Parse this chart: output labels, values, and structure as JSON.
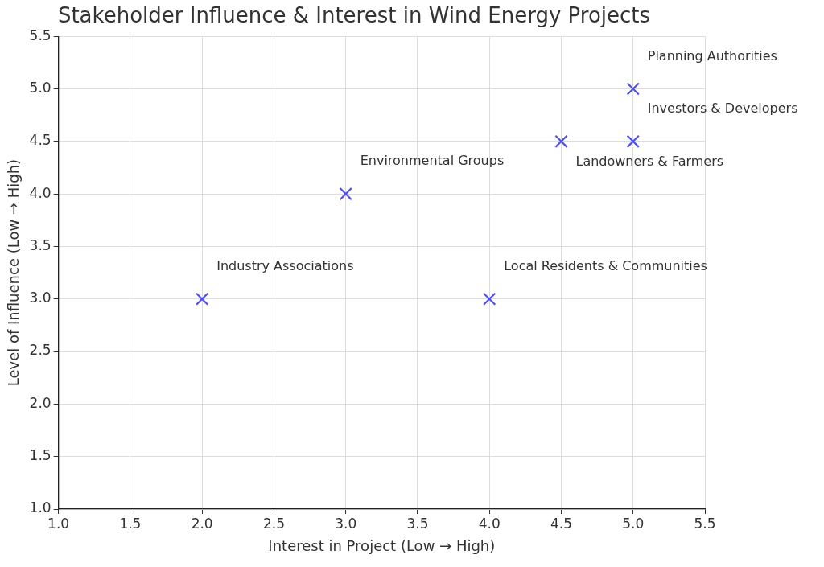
{
  "chart_data": {
    "type": "scatter",
    "title": "Stakeholder Influence & Interest in Wind Energy Projects",
    "xlabel": "Interest in Project (Low → High)",
    "ylabel": "Level of Influence (Low → High)",
    "x": [
      5,
      5,
      4.5,
      3,
      4,
      2
    ],
    "values": [
      5,
      4.5,
      4.5,
      4,
      3,
      3
    ],
    "color": "#5050f0",
    "marker": "cross",
    "grid": true,
    "xlim": [
      1,
      5.5
    ],
    "xticks": [
      {
        "value": 1,
        "label": "1.0"
      },
      1.5,
      {
        "value": 2,
        "label": "2.0"
      },
      2.5,
      {
        "value": 3,
        "label": "3.0"
      },
      3.5,
      {
        "value": 4,
        "label": "4.0"
      },
      4.5,
      {
        "value": 5,
        "label": "5.0"
      },
      5.5
    ],
    "ylim": [
      1,
      5.5
    ],
    "yticks": [
      {
        "value": 1,
        "label": "1.0"
      },
      1.5,
      {
        "value": 2,
        "label": "2.0"
      },
      2.5,
      {
        "value": 3,
        "label": "3.0"
      },
      3.5,
      {
        "value": 4,
        "label": "4.0"
      },
      4.5,
      {
        "value": 5,
        "label": "5.0"
      },
      5.5
    ],
    "annotations": [
      {
        "text": "Planning Authorities",
        "x": 5,
        "y": 5
      },
      {
        "text": "Investors & Developers",
        "x": 5,
        "y": 4.5
      },
      {
        "text": "Landowners & Farmers",
        "x": 4.5,
        "y": 4.5
      },
      {
        "text": "Environmental Groups",
        "x": 3,
        "y": 4
      },
      {
        "text": "Local Residents & Communities",
        "x": 4,
        "y": 3
      },
      {
        "text": "Industry Associations",
        "x": 2,
        "y": 3
      }
    ]
  }
}
